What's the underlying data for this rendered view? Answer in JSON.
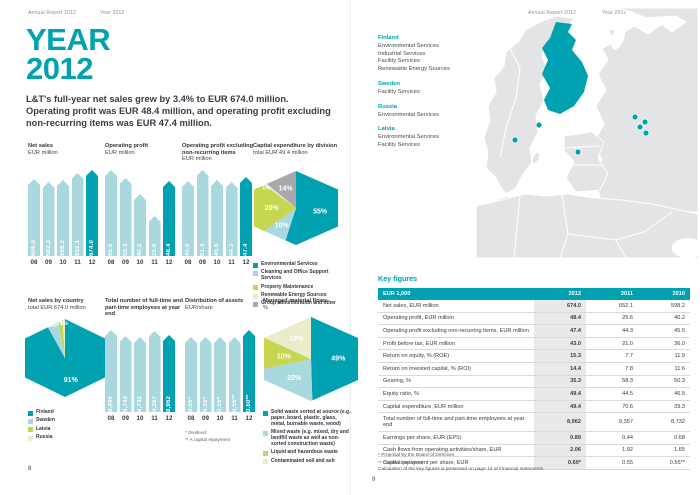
{
  "colors": {
    "teal": "#00a1b1",
    "light": "#a9d8df",
    "lime": "#c6d74f",
    "pale": "#eaeccb",
    "gray": "#a7a9ac",
    "text_dark": "#3a3a45",
    "land_gray": "#e3e4e6",
    "col_shade": "#e9e9ea"
  },
  "pages": {
    "left": {
      "header_1": "Annual Report 2012",
      "header_2": "Year 2012",
      "page_number": "8"
    },
    "right": {
      "header_1": "Annual Report 2012",
      "header_2": "Year 2012",
      "page_number": "9"
    }
  },
  "intro": {
    "title_line1": "YEAR",
    "title_line2": "2012",
    "lead": "L&T's full-year net sales grew by 3.4% to EUR 674.0 million. Operating profit was EUR 48.4 million, and operating profit excluding non-recurring items was EUR 47.4 million."
  },
  "chart_data": [
    {
      "id": "net-sales",
      "type": "bar",
      "title": "Net sales",
      "subtitle": "EUR million",
      "categories": [
        "08",
        "09",
        "10",
        "11",
        "12"
      ],
      "values": [
        606.0,
        582.3,
        598.2,
        652.1,
        674.0
      ],
      "value_labels": [
        "606.0",
        "582.3",
        "598.2",
        "652.1",
        "674.0"
      ],
      "highlight_index": 4
    },
    {
      "id": "operating-profit",
      "type": "bar",
      "title": "Operating profit",
      "subtitle": "EUR million",
      "categories": [
        "08",
        "09",
        "10",
        "11",
        "12"
      ],
      "values": [
        55.5,
        50.3,
        40.2,
        25.6,
        48.4
      ],
      "value_labels": [
        "55.5",
        "50.3",
        "40.2",
        "25.6",
        "48.4"
      ],
      "highlight_index": 4
    },
    {
      "id": "operating-profit-excl",
      "type": "bar",
      "title": "Operating profit excluding non-recurring items",
      "subtitle": "EUR million",
      "categories": [
        "08",
        "09",
        "10",
        "11",
        "12"
      ],
      "values": [
        45.0,
        51.3,
        45.5,
        44.3,
        47.4
      ],
      "value_labels": [
        "45.0",
        "51.3",
        "45.5",
        "44.3",
        "47.4"
      ],
      "highlight_index": 4
    },
    {
      "id": "capex",
      "type": "pie",
      "title": "Capital expenditure by division",
      "subtitle": "total EUR 49.4 million",
      "slices": [
        {
          "label": "Environmental Services",
          "value": 55,
          "color_key": "teal"
        },
        {
          "label": "Cleaning and Office Support Services",
          "value": 10,
          "color_key": "light"
        },
        {
          "label": "Property Maintenance",
          "value": 20,
          "color_key": "lime"
        },
        {
          "label": "Renewable Energy Sources",
          "value": 1,
          "color_key": "pale"
        },
        {
          "label": "Group administration and other",
          "value": 14,
          "color_key": "gray"
        }
      ]
    },
    {
      "id": "country",
      "type": "pie",
      "title": "Net sales by country",
      "subtitle": "total EUR 674.0 million",
      "slices": [
        {
          "label": "Finland",
          "value": 91,
          "color_key": "teal"
        },
        {
          "label": "Sweden",
          "value": 5,
          "color_key": "light"
        },
        {
          "label": "Latvia",
          "value": 2,
          "color_key": "lime"
        },
        {
          "label": "Russia",
          "value": 1,
          "color_key": "pale"
        }
      ]
    },
    {
      "id": "employees",
      "type": "bar",
      "title": "Total number of full-time and part-time employees at year end",
      "subtitle": "",
      "categories": [
        "08",
        "09",
        "10",
        "11",
        "12"
      ],
      "values": [
        9490,
        8743,
        8732,
        9357,
        8962
      ],
      "value_labels": [
        "9,490",
        "8,743",
        "8,732",
        "9,357",
        "8,962"
      ],
      "highlight_index": 4
    },
    {
      "id": "assets",
      "type": "bar",
      "title": "Distribution of assets",
      "subtitle": "EUR/share",
      "categories": [
        "08",
        "09",
        "10",
        "11",
        "12"
      ],
      "values": [
        0.55,
        0.55,
        0.55,
        0.55,
        0.6
      ],
      "value_labels": [
        "0.55*",
        "0.55*",
        "0.55*",
        "0.55**",
        "0.60**"
      ],
      "highlight_index": 4,
      "footnotes": [
        "* Dividend",
        "** A capital repayment"
      ]
    },
    {
      "id": "material",
      "type": "pie",
      "title": "Managed material flows",
      "subtitle": "%",
      "slices": [
        {
          "label": "Solid waste sorted at source (e.g. paper, board, plastic, glass, metal, burnable waste, wood)",
          "value": 49,
          "color_key": "teal"
        },
        {
          "label": "Mixed waste (e.g. mixed, dry and landfill waste as well as non-sorted construction waste)",
          "value": 22,
          "color_key": "light"
        },
        {
          "label": "Liquid and hazardous waste",
          "value": 10,
          "color_key": "lime"
        },
        {
          "label": "Contaminated soil and ash",
          "value": 18,
          "color_key": "pale"
        }
      ]
    }
  ],
  "locations": [
    {
      "country": "Finland",
      "services": [
        "Environmental Services",
        "Industrial Services",
        "Facility Services",
        "Renewable Energy Sources"
      ]
    },
    {
      "country": "Sweden",
      "services": [
        "Facility Services"
      ]
    },
    {
      "country": "Russia",
      "services": [
        "Environmental Services"
      ]
    },
    {
      "country": "Latvia",
      "services": [
        "Environmental Services",
        "Facility Services"
      ]
    }
  ],
  "key_figures": {
    "heading": "Key figures",
    "col_header": "EUR 1,000",
    "years": [
      "2012",
      "2011",
      "2010"
    ],
    "rows": [
      [
        "Net sales, EUR million",
        "674.0",
        "652.1",
        "598.2"
      ],
      [
        "Operating profit, EUR million",
        "48.4",
        "25.6",
        "40.2"
      ],
      [
        "Operating profit excluding non-recurring items, EUR million",
        "47.4",
        "44.3",
        "45.5"
      ],
      [
        "Profit before tax, EUR million",
        "43.0",
        "21.0",
        "36.0"
      ],
      [
        "Return on equity, % (ROE)",
        "15.3",
        "7.7",
        "11.9"
      ],
      [
        "Return on invested capital, % (ROI)",
        "14.4",
        "7.8",
        "11.6"
      ],
      [
        "Gearing, %",
        "35.3",
        "58.3",
        "50.3"
      ],
      [
        "Equity ratio, %",
        "49.4",
        "44.5",
        "46.5"
      ],
      [
        "Capital expenditure, EUR million",
        "49.4",
        "70.6",
        "39.3"
      ],
      [
        "Total number of full-time and part-time employees at year end",
        "8,962",
        "9,357",
        "8,732"
      ],
      [
        "Earnings per share, EUR (EPS)",
        "0.89",
        "0.44",
        "0.68"
      ],
      [
        "Cash flows from operating activities/share, EUR",
        "2.06",
        "1.92",
        "1.65"
      ],
      [
        "Capital repayment per share, EUR",
        "0.60*",
        "0.55",
        "0.55**"
      ]
    ],
    "footnotes": [
      "*  Proposal by the Board of Directors",
      "** Dividend per share"
    ],
    "note": "Calculation of the key figures is presented on page 14 of Financial statements."
  }
}
